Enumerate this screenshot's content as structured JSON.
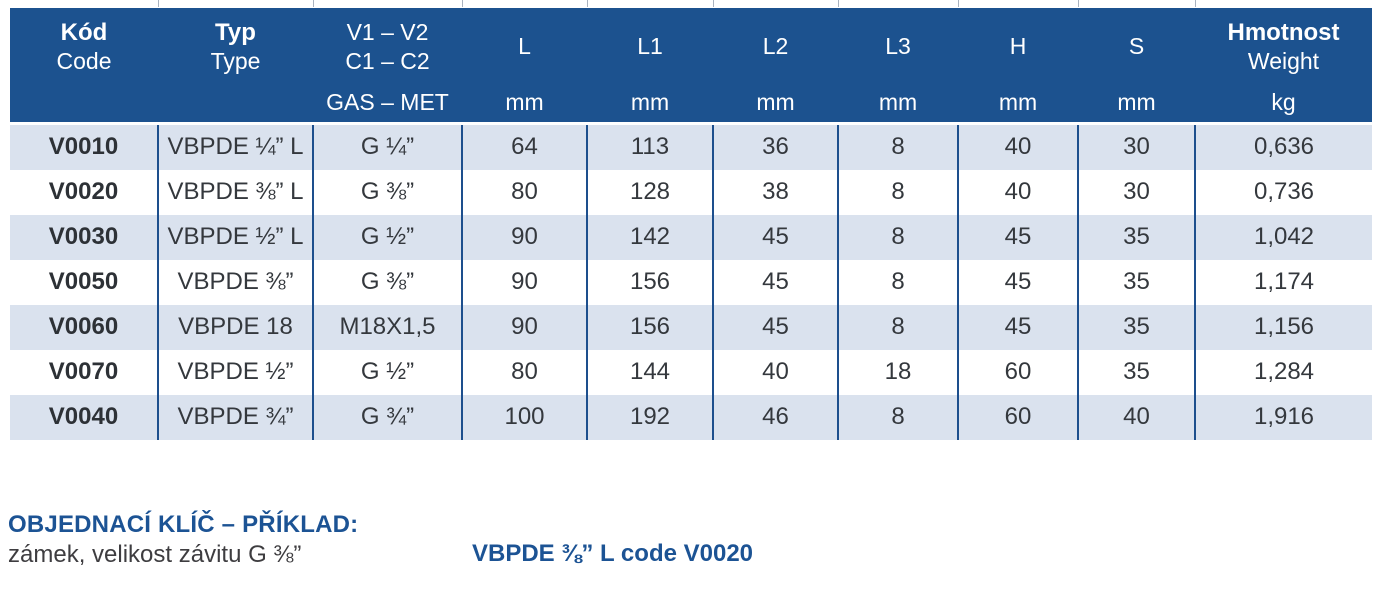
{
  "colors": {
    "header_bg": "#1c528f",
    "row_alt": "#dae2ee",
    "grid_line": "#1d4f8d",
    "accent_blue": "#1c5394",
    "body_text": "#34383d",
    "description_text": "#3e3d40"
  },
  "table": {
    "columns": [
      {
        "id": "code",
        "title": "Kód",
        "subtitle": "Code",
        "unit": "",
        "title_bold": true
      },
      {
        "id": "type",
        "title": "Typ",
        "subtitle": "Type",
        "unit": "",
        "title_bold": true
      },
      {
        "id": "thread",
        "title": "V1 – V2",
        "subtitle": "C1 – C2",
        "unit": "GAS – MET",
        "title_bold": false
      },
      {
        "id": "l",
        "title": "L",
        "subtitle": "",
        "unit": "mm",
        "title_bold": false
      },
      {
        "id": "l1",
        "title": "L1",
        "subtitle": "",
        "unit": "mm",
        "title_bold": false
      },
      {
        "id": "l2",
        "title": "L2",
        "subtitle": "",
        "unit": "mm",
        "title_bold": false
      },
      {
        "id": "l3",
        "title": "L3",
        "subtitle": "",
        "unit": "mm",
        "title_bold": false
      },
      {
        "id": "h",
        "title": "H",
        "subtitle": "",
        "unit": "mm",
        "title_bold": false
      },
      {
        "id": "s",
        "title": "S",
        "subtitle": "",
        "unit": "mm",
        "title_bold": false
      },
      {
        "id": "weight",
        "title": "Hmotnost",
        "subtitle": "Weight",
        "unit": "kg",
        "title_bold": true
      }
    ],
    "rows": [
      [
        "V0010",
        "VBPDE ¼” L",
        "G ¼”",
        "64",
        "113",
        "36",
        "8",
        "40",
        "30",
        "0,636"
      ],
      [
        "V0020",
        "VBPDE ⅜” L",
        "G ⅜”",
        "80",
        "128",
        "38",
        "8",
        "40",
        "30",
        "0,736"
      ],
      [
        "V0030",
        "VBPDE ½” L",
        "G ½”",
        "90",
        "142",
        "45",
        "8",
        "45",
        "35",
        "1,042"
      ],
      [
        "V0050",
        "VBPDE ⅜”",
        "G ⅜”",
        "90",
        "156",
        "45",
        "8",
        "45",
        "35",
        "1,174"
      ],
      [
        "V0060",
        "VBPDE 18",
        "M18X1,5",
        "90",
        "156",
        "45",
        "8",
        "45",
        "35",
        "1,156"
      ],
      [
        "V0070",
        "VBPDE ½”",
        "G ½”",
        "80",
        "144",
        "40",
        "18",
        "60",
        "35",
        "1,284"
      ],
      [
        "V0040",
        "VBPDE ¾”",
        "G ¾”",
        "100",
        "192",
        "46",
        "8",
        "60",
        "40",
        "1,916"
      ]
    ]
  },
  "footer": {
    "heading": "OBJEDNACÍ KLÍČ – PŘÍKLAD:",
    "example_description": "zámek, velikost závitu G ⅜”",
    "example_code": "VBPDE ⅜” L code V0020"
  }
}
